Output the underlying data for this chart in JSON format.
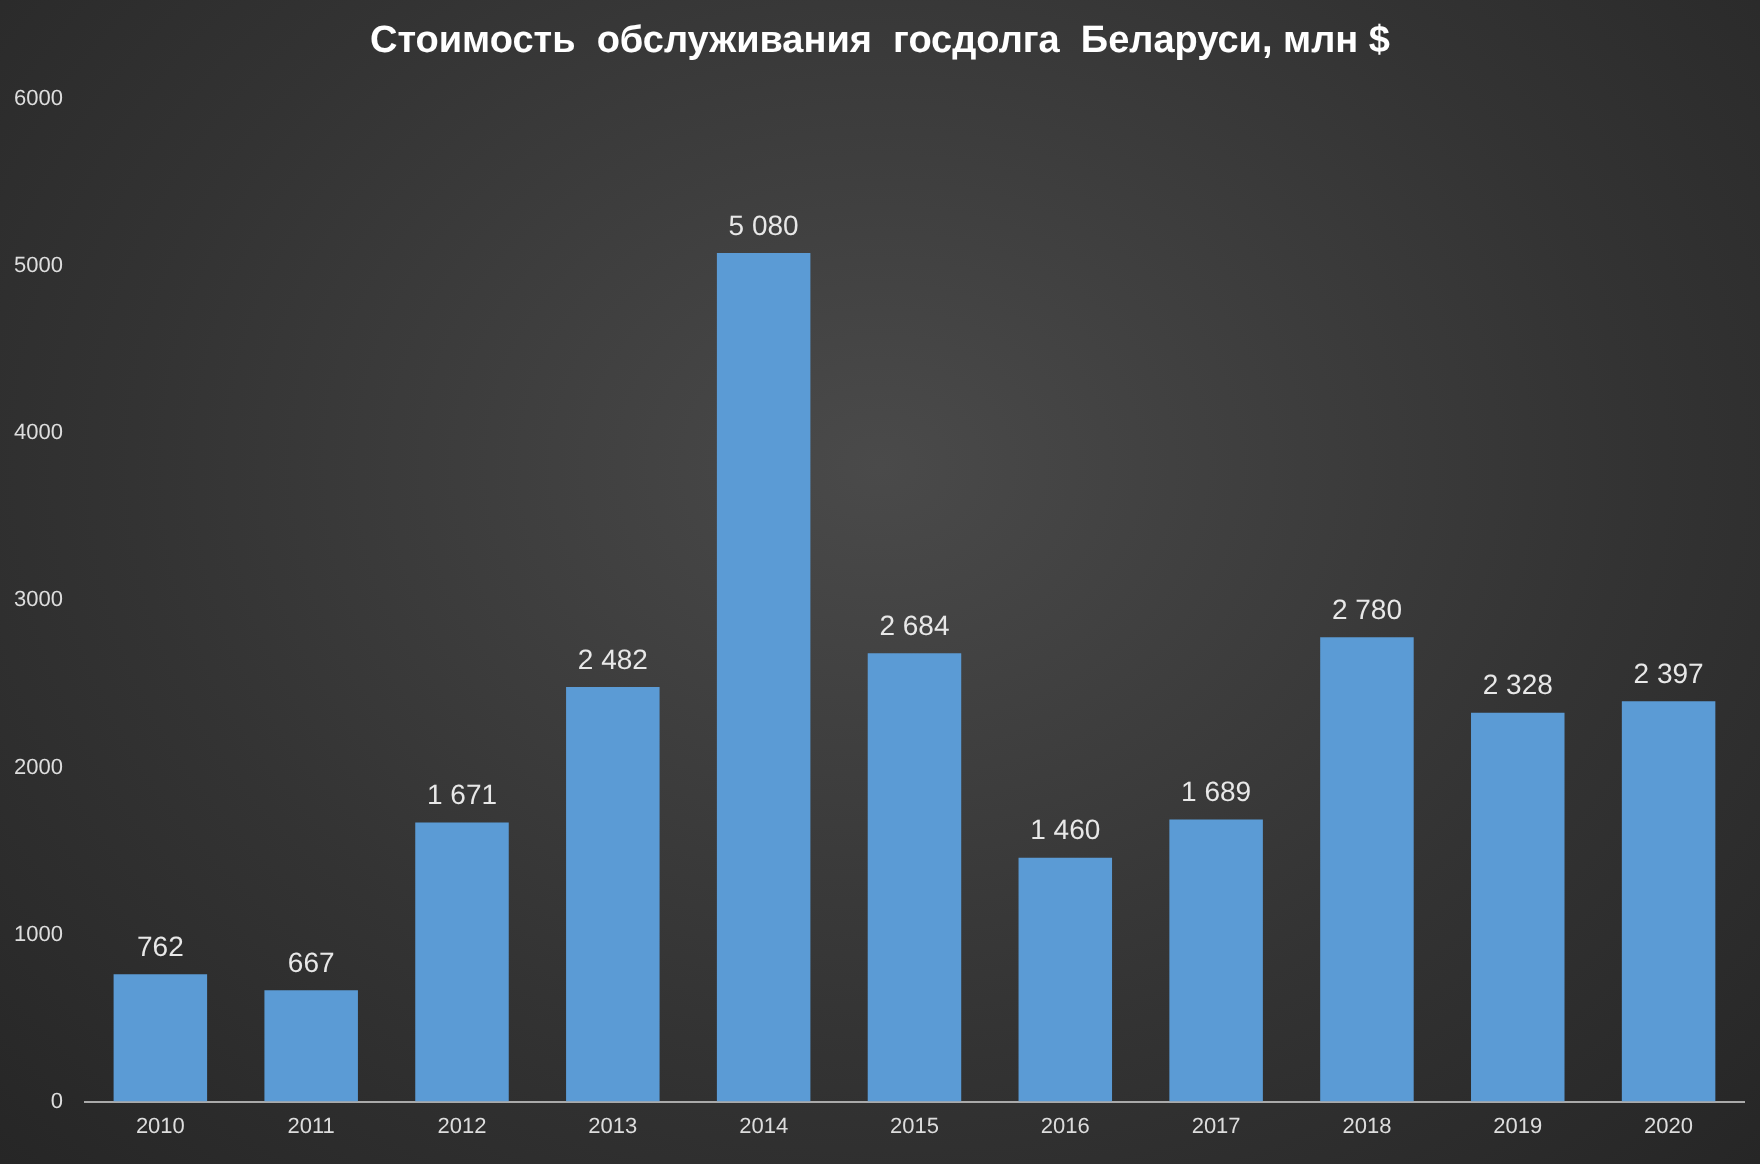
{
  "chart_data": {
    "type": "bar",
    "title": "Стоимость  обслуживания  госдолга  Беларуси, млн $",
    "categories": [
      "2010",
      "2011",
      "2012",
      "2013",
      "2014",
      "2015",
      "2016",
      "2017",
      "2018",
      "2019",
      "2020"
    ],
    "values": [
      762,
      667,
      1671,
      2482,
      5080,
      2684,
      1460,
      1689,
      2780,
      2328,
      2397
    ],
    "value_labels": [
      "762",
      "667",
      "1 671",
      "2 482",
      "5 080",
      "2 684",
      "1 460",
      "1 689",
      "2 780",
      "2 328",
      "2 397"
    ],
    "color": "#5b9bd5",
    "ylim": [
      0,
      6000
    ],
    "yticks": [
      0,
      1000,
      2000,
      3000,
      4000,
      5000,
      6000
    ],
    "grid": false,
    "legend": false
  }
}
